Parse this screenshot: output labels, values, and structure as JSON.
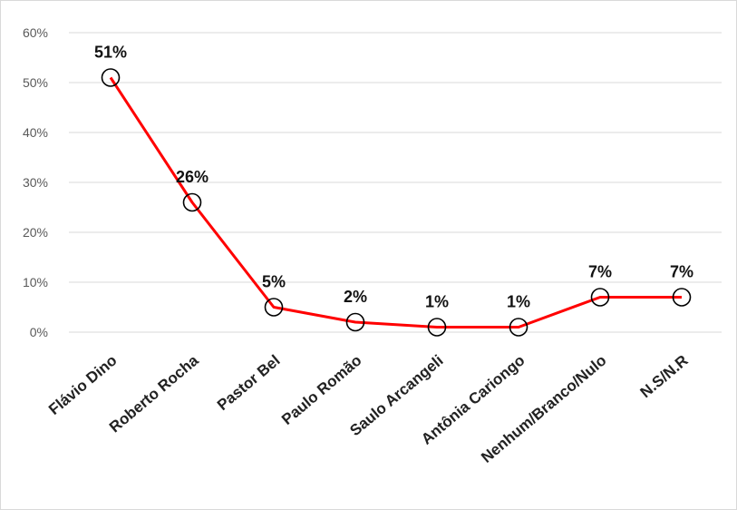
{
  "chart_data": {
    "type": "line",
    "categories": [
      "Flávio Dino",
      "Roberto Rocha",
      "Pastor Bel",
      "Paulo Romão",
      "Saulo Arcangeli",
      "Antônia Cariongo",
      "Nenhum/Branco/Nulo",
      "N.S/N.R"
    ],
    "values": [
      51,
      26,
      5,
      2,
      1,
      1,
      7,
      7
    ],
    "data_labels": [
      "51%",
      "26%",
      "5%",
      "2%",
      "1%",
      "1%",
      "7%",
      "7%"
    ],
    "yticks": [
      0,
      10,
      20,
      30,
      40,
      50,
      60
    ],
    "ytick_labels": [
      "0%",
      "10%",
      "20%",
      "30%",
      "40%",
      "50%",
      "60%"
    ],
    "ylim": [
      0,
      60
    ],
    "grid": true,
    "line_color": "#ff0000",
    "marker": "open-circle",
    "marker_color": "#000000",
    "grid_color": "#d9d9d9"
  }
}
